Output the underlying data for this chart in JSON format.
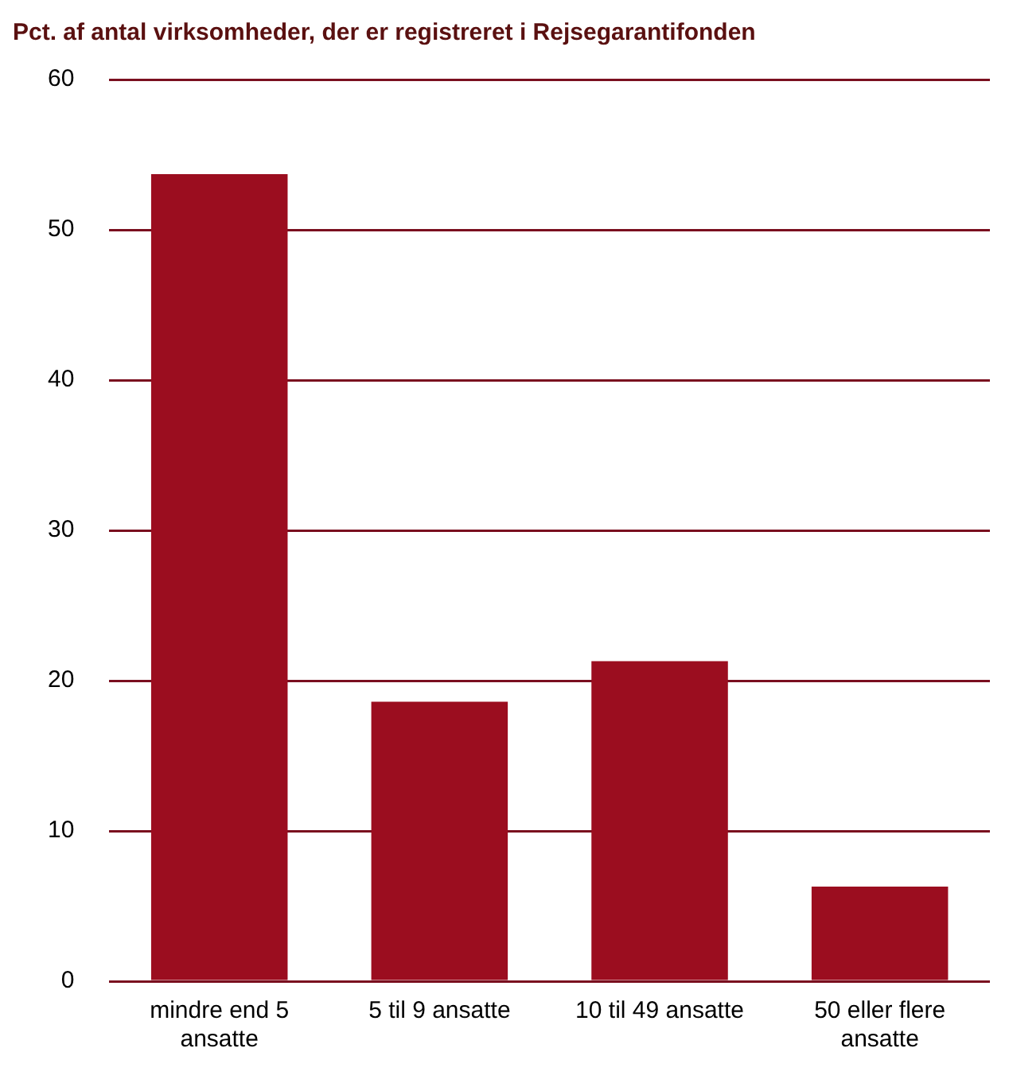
{
  "chart_data": {
    "type": "bar",
    "title": "Pct. af antal virksomheder, der er registreret i Rejsegarantifonden",
    "categories": [
      "mindre end 5 ansatte",
      "5 til 9 ansatte",
      "10 til 49 ansatte",
      "50 eller flere ansatte"
    ],
    "values": [
      53.7,
      18.6,
      21.3,
      6.3
    ],
    "color": "#9b0d1f",
    "ylim": [
      0,
      60
    ],
    "yticks": [
      0,
      10,
      20,
      30,
      40,
      50,
      60
    ],
    "grid": "y",
    "legend": false
  }
}
